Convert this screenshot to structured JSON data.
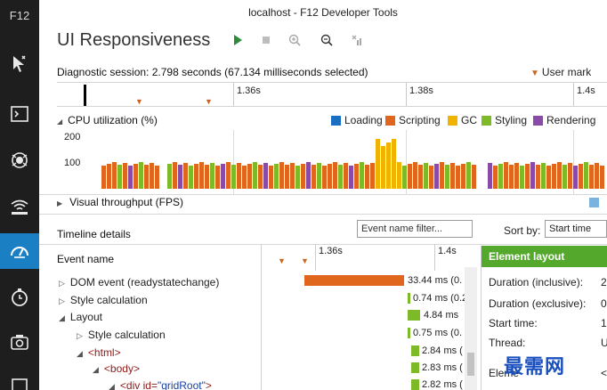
{
  "window": {
    "title": "localhost - F12 Developer Tools",
    "rail_label": "F12"
  },
  "tool": {
    "name": "UI Responsiveness"
  },
  "session": {
    "text": "Diagnostic session: 2.798 seconds (67.134 milliseconds selected)",
    "user_mark": "User mark"
  },
  "ruler": {
    "labels": [
      "1.36s",
      "1.38s",
      "1.4s"
    ]
  },
  "cpu": {
    "title": "CPU utilization (%)",
    "axis": [
      "200",
      "100"
    ],
    "legend": [
      {
        "label": "Loading",
        "color": "#1b6fc2"
      },
      {
        "label": "Scripting",
        "color": "#e0661d"
      },
      {
        "label": "GC",
        "color": "#f0b400"
      },
      {
        "label": "Styling",
        "color": "#7dba28"
      },
      {
        "label": "Rendering",
        "color": "#8a4aa8"
      }
    ]
  },
  "fps": {
    "title": "Visual throughput (FPS)"
  },
  "details": {
    "title": "Timeline details",
    "filter_placeholder": "Event name filter...",
    "sort_label": "Sort by:",
    "sort_value": "Start time",
    "column_header": "Event name",
    "timeline_labels": [
      "1.36s",
      "1.4s"
    ],
    "events": [
      {
        "name": "DOM event (readystatechange)",
        "time": "33.44 ms (0."
      },
      {
        "name": "Style calculation",
        "time": "0.74 ms (0.2"
      },
      {
        "name": "Layout",
        "time": "4.84 ms"
      },
      {
        "name": "Style calculation",
        "time": "0.75 ms (0."
      },
      {
        "name_tag": "<html>",
        "time": "2.84 ms ("
      },
      {
        "name_tag": "<body>",
        "time": "2.83 ms ("
      },
      {
        "name_tag": "<div ",
        "attr": "id=",
        "val": "\"gridRoot\"",
        "end": ">",
        "time": "2.82 ms ("
      }
    ]
  },
  "panel": {
    "title": "Element layout",
    "rows": [
      {
        "label": "Duration (inclusive):",
        "value": "2"
      },
      {
        "label": "Duration (exclusive):",
        "value": "0"
      },
      {
        "label": "Start time:",
        "value": "1"
      },
      {
        "label": "Thread:",
        "value": "U"
      },
      {
        "label": "Eleme",
        "value": "<"
      }
    ]
  },
  "watermark": "最需网"
}
